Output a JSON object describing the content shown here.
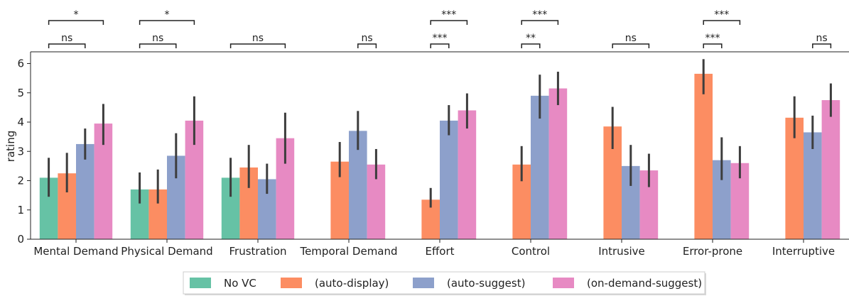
{
  "chart_data": {
    "type": "bar",
    "ylabel": "rating",
    "xlabel": "",
    "ylim": [
      0,
      6.4
    ],
    "yticks": [
      0,
      1,
      2,
      3,
      4,
      5,
      6
    ],
    "grid": false,
    "legend_position": "bottom-center",
    "categories": [
      "Mental Demand",
      "Physical Demand",
      "Frustration",
      "Temporal Demand",
      "Effort",
      "Control",
      "Intrusive",
      "Error-prone",
      "Interruptive"
    ],
    "series": [
      {
        "name": "No VC",
        "color": "#66c2a5",
        "values": [
          2.1,
          1.7,
          2.1,
          null,
          null,
          null,
          null,
          null,
          null
        ],
        "ci": [
          [
            1.45,
            2.78
          ],
          [
            1.22,
            2.28
          ],
          [
            1.45,
            2.78
          ],
          null,
          null,
          null,
          null,
          null,
          null
        ]
      },
      {
        "name": "(auto-display)",
        "color": "#fc8d62",
        "values": [
          2.25,
          1.7,
          2.45,
          2.65,
          1.35,
          2.55,
          3.85,
          5.65,
          4.15
        ],
        "ci": [
          [
            1.6,
            2.95
          ],
          [
            1.22,
            2.38
          ],
          [
            1.75,
            3.22
          ],
          [
            2.12,
            3.32
          ],
          [
            1.08,
            1.75
          ],
          [
            1.98,
            3.18
          ],
          [
            3.08,
            4.52
          ],
          [
            4.95,
            6.15
          ],
          [
            3.45,
            4.88
          ]
        ]
      },
      {
        "name": "(auto-suggest)",
        "color": "#8da0cb",
        "values": [
          3.25,
          2.85,
          2.05,
          3.7,
          4.05,
          4.9,
          2.5,
          2.7,
          3.65
        ],
        "ci": [
          [
            2.72,
            3.78
          ],
          [
            2.08,
            3.62
          ],
          [
            1.55,
            2.58
          ],
          [
            3.05,
            4.38
          ],
          [
            3.55,
            4.58
          ],
          [
            4.12,
            5.62
          ],
          [
            1.82,
            3.22
          ],
          [
            2.02,
            3.48
          ],
          [
            3.08,
            4.22
          ]
        ]
      },
      {
        "name": "(on-demand-suggest)",
        "color": "#e78ac3",
        "values": [
          3.95,
          4.05,
          3.45,
          2.55,
          4.4,
          5.15,
          2.35,
          2.6,
          4.75
        ],
        "ci": [
          [
            3.22,
            4.62
          ],
          [
            3.22,
            4.88
          ],
          [
            2.58,
            4.32
          ],
          [
            2.05,
            3.08
          ],
          [
            3.78,
            4.98
          ],
          [
            4.58,
            5.72
          ],
          [
            1.78,
            2.92
          ],
          [
            2.08,
            3.18
          ],
          [
            4.18,
            5.32
          ]
        ]
      }
    ],
    "significance": [
      {
        "category": "Mental Demand",
        "lower": {
          "from": 0,
          "to": 2,
          "label": "ns"
        },
        "upper": {
          "from": 0,
          "to": 3,
          "label": "*"
        }
      },
      {
        "category": "Physical Demand",
        "lower": {
          "from": 0,
          "to": 2,
          "label": "ns"
        },
        "upper": {
          "from": 0,
          "to": 3,
          "label": "*"
        }
      },
      {
        "category": "Frustration",
        "lower": {
          "from": 0,
          "to": 3,
          "label": "ns"
        }
      },
      {
        "category": "Temporal Demand",
        "lower": {
          "from": 2,
          "to": 3,
          "label": "ns"
        }
      },
      {
        "category": "Effort",
        "lower": {
          "from": 1,
          "to": 2,
          "label": "***"
        },
        "upper": {
          "from": 1,
          "to": 3,
          "label": "***"
        }
      },
      {
        "category": "Control",
        "lower": {
          "from": 1,
          "to": 2,
          "label": "**"
        },
        "upper": {
          "from": 1,
          "to": 3,
          "label": "***"
        }
      },
      {
        "category": "Intrusive",
        "lower": {
          "from": 1,
          "to": 3,
          "label": "ns"
        }
      },
      {
        "category": "Error-prone",
        "lower": {
          "from": 1,
          "to": 2,
          "label": "***"
        },
        "upper": {
          "from": 1,
          "to": 3,
          "label": "***"
        }
      },
      {
        "category": "Interruptive",
        "lower": {
          "from": 2,
          "to": 3,
          "label": "ns"
        }
      }
    ]
  }
}
